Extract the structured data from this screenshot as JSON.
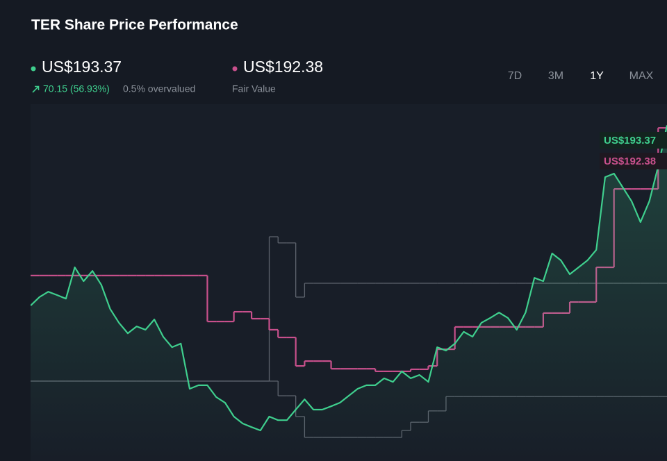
{
  "chart_data": {
    "type": "line",
    "title": "TER Share Price Performance",
    "change": "70.15 (56.93%)",
    "valuation": "0.5% overvalued",
    "periods": [
      "7D",
      "3M",
      "1Y",
      "MAX"
    ],
    "selected_period": 2,
    "ylim": [
      70,
      200
    ],
    "series": [
      {
        "color": "#3fcf8e",
        "fill": true,
        "end_label": "US$193.37",
        "values": [
          123.2,
          126.5,
          128.6,
          127.3,
          125.9,
          138.1,
          132.7,
          136.7,
          131.3,
          121.9,
          116.5,
          112.4,
          115.1,
          113.8,
          117.8,
          111.1,
          107.0,
          108.4,
          90.8,
          92.2,
          92.2,
          87.6,
          85.4,
          80.0,
          77.3,
          75.9,
          74.6,
          80.0,
          78.6,
          78.6,
          82.7,
          86.7,
          82.7,
          82.7,
          84.0,
          85.4,
          88.1,
          90.8,
          92.2,
          92.2,
          94.9,
          93.5,
          97.6,
          94.9,
          96.2,
          93.5,
          107.0,
          105.7,
          108.4,
          113.0,
          111.1,
          116.5,
          118.4,
          120.5,
          118.4,
          113.8,
          120.5,
          134.0,
          132.7,
          143.5,
          140.8,
          135.4,
          138.1,
          140.8,
          144.9,
          173.2,
          174.6,
          169.2,
          163.8,
          155.7,
          163.8,
          177.3,
          193.37
        ]
      },
      {
        "name": "Fair Value",
        "color": "#c8508c",
        "step": true,
        "end_label": "US$192.38",
        "values": [
          134.9,
          134.9,
          134.9,
          134.9,
          134.9,
          134.9,
          134.9,
          134.9,
          134.9,
          134.9,
          134.9,
          134.9,
          134.9,
          134.9,
          134.9,
          134.9,
          134.9,
          134.9,
          134.9,
          134.9,
          117.0,
          117.0,
          117.0,
          120.8,
          120.8,
          118.1,
          118.1,
          113.8,
          110.8,
          110.8,
          99.7,
          101.6,
          101.6,
          101.6,
          98.6,
          98.6,
          98.6,
          98.6,
          98.6,
          97.6,
          97.6,
          97.6,
          97.6,
          98.4,
          98.4,
          99.7,
          106.2,
          106.2,
          114.9,
          114.9,
          114.9,
          114.9,
          114.9,
          114.9,
          114.9,
          114.9,
          114.9,
          114.9,
          120.3,
          120.3,
          120.3,
          124.6,
          124.6,
          124.6,
          138.1,
          138.1,
          168.6,
          168.6,
          168.6,
          168.6,
          168.6,
          192.38,
          192.38
        ]
      },
      {
        "color": "#5d636d",
        "step": true,
        "values": [
          93.8,
          93.8,
          93.8,
          93.8,
          93.8,
          93.8,
          93.8,
          93.8,
          93.8,
          93.8,
          93.8,
          93.8,
          93.8,
          93.8,
          93.8,
          93.8,
          93.8,
          93.8,
          93.8,
          93.8,
          93.8,
          93.8,
          93.8,
          93.8,
          93.8,
          93.8,
          93.8,
          150.0,
          147.6,
          147.6,
          126.5,
          131.9,
          131.9,
          131.9,
          131.9,
          131.9,
          131.9,
          131.9,
          131.9,
          131.9,
          131.9,
          131.9,
          131.9,
          131.9,
          131.9,
          131.9,
          131.9,
          131.9,
          131.9,
          131.9,
          131.9,
          131.9,
          131.9,
          131.9,
          131.9,
          131.9,
          131.9,
          131.9,
          131.9,
          131.9,
          131.9,
          131.9,
          131.9,
          131.9,
          131.9,
          131.9,
          131.9,
          131.9,
          131.9,
          131.9,
          131.9,
          131.9,
          131.9
        ]
      },
      {
        "color": "#5d636d",
        "step": true,
        "values": [
          93.8,
          93.8,
          93.8,
          93.8,
          93.8,
          93.8,
          93.8,
          93.8,
          93.8,
          93.8,
          93.8,
          93.8,
          93.8,
          93.8,
          93.8,
          93.8,
          93.8,
          93.8,
          93.8,
          93.8,
          93.8,
          93.8,
          93.8,
          93.8,
          93.8,
          93.8,
          93.8,
          93.8,
          88.1,
          88.1,
          80.0,
          71.9,
          71.9,
          71.9,
          71.9,
          71.9,
          71.9,
          71.9,
          71.9,
          71.9,
          71.9,
          71.9,
          74.6,
          77.8,
          77.8,
          82.2,
          82.2,
          87.8,
          87.8,
          87.8,
          87.8,
          87.8,
          87.8,
          87.8,
          87.8,
          87.8,
          87.8,
          87.8,
          87.8,
          87.8,
          87.8,
          87.8,
          87.8,
          87.8,
          87.8,
          87.8,
          87.8,
          87.8,
          87.8,
          87.8,
          87.8,
          87.8,
          87.8
        ]
      }
    ]
  }
}
